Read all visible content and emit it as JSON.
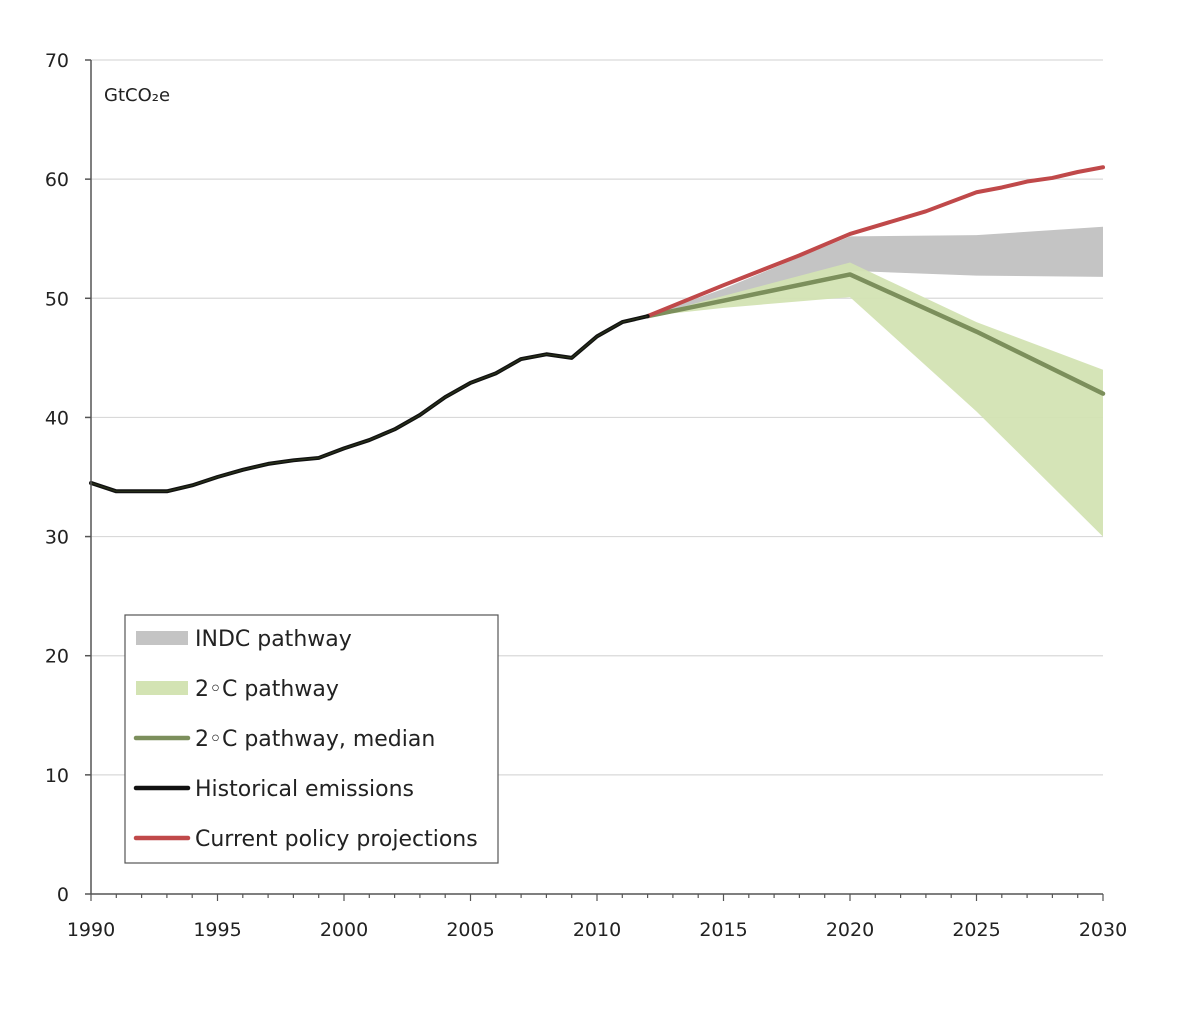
{
  "chart_data": {
    "type": "line",
    "title": "",
    "unit_label": "GtCO₂e",
    "xlabel": "",
    "ylabel": "GtCO₂e",
    "xlim": [
      1990,
      2030
    ],
    "ylim": [
      0,
      70
    ],
    "x_ticks": [
      "1990",
      "1995",
      "2000",
      "2005",
      "2010",
      "2015",
      "2020",
      "2025",
      "2030"
    ],
    "y_ticks": [
      "0",
      "10",
      "20",
      "30",
      "40",
      "50",
      "60",
      "70"
    ],
    "grid": true,
    "legend_position": "bottom-left",
    "colors": {
      "indc": "#c4c4c4",
      "two_c_band": "#d3e3b3",
      "two_c_median": "#7c8f5c",
      "historical": "#111111",
      "current_policy": "#c0494a",
      "grid": "#d9d9d9",
      "axis": "#555555"
    },
    "legend": [
      {
        "key": "indc",
        "label": "INDC pathway",
        "style": "band"
      },
      {
        "key": "two_c_band",
        "label": "2◦C pathway",
        "style": "band"
      },
      {
        "key": "two_c_median",
        "label": "2◦C pathway, median",
        "style": "line"
      },
      {
        "key": "historical",
        "label": "Historical emissions",
        "style": "line"
      },
      {
        "key": "current_policy",
        "label": "Current policy projections",
        "style": "line"
      }
    ],
    "series": [
      {
        "name": "Historical emissions",
        "key": "historical",
        "x": [
          1990,
          1991,
          1992,
          1993,
          1994,
          1995,
          1996,
          1997,
          1998,
          1999,
          2000,
          2001,
          2002,
          2003,
          2004,
          2005,
          2006,
          2007,
          2008,
          2009,
          2010,
          2011,
          2012
        ],
        "values": [
          34.5,
          33.8,
          33.8,
          33.8,
          34.3,
          35.0,
          35.6,
          36.1,
          36.4,
          36.6,
          37.4,
          38.1,
          39.0,
          40.2,
          41.7,
          42.9,
          43.7,
          44.9,
          45.3,
          45.0,
          46.8,
          48.0,
          48.5
        ]
      },
      {
        "name": "Current policy projections",
        "key": "current_policy",
        "x": [
          2012,
          2015,
          2018,
          2020,
          2023,
          2025,
          2026,
          2027,
          2028,
          2029,
          2030
        ],
        "values": [
          48.5,
          51.1,
          53.6,
          55.4,
          57.3,
          58.9,
          59.3,
          59.8,
          60.1,
          60.6,
          61.0
        ]
      },
      {
        "name": "2◦C pathway, median",
        "key": "two_c_median",
        "x": [
          2012,
          2015,
          2020,
          2025,
          2030
        ],
        "values": [
          48.5,
          49.8,
          52.0,
          47.2,
          42.0
        ]
      }
    ],
    "bands": [
      {
        "name": "INDC pathway",
        "key": "indc",
        "x": [
          2012,
          2015,
          2020,
          2025,
          2030
        ],
        "lower": [
          48.5,
          49.8,
          52.3,
          51.9,
          51.8
        ],
        "upper": [
          48.5,
          50.8,
          55.2,
          55.3,
          56.0
        ]
      },
      {
        "name": "2◦C pathway",
        "key": "two_c_band",
        "x": [
          2012,
          2015,
          2020,
          2025,
          2030
        ],
        "lower": [
          48.5,
          49.2,
          50.1,
          40.5,
          30.0
        ],
        "upper": [
          48.5,
          50.2,
          53.0,
          48.0,
          44.0
        ]
      }
    ]
  }
}
